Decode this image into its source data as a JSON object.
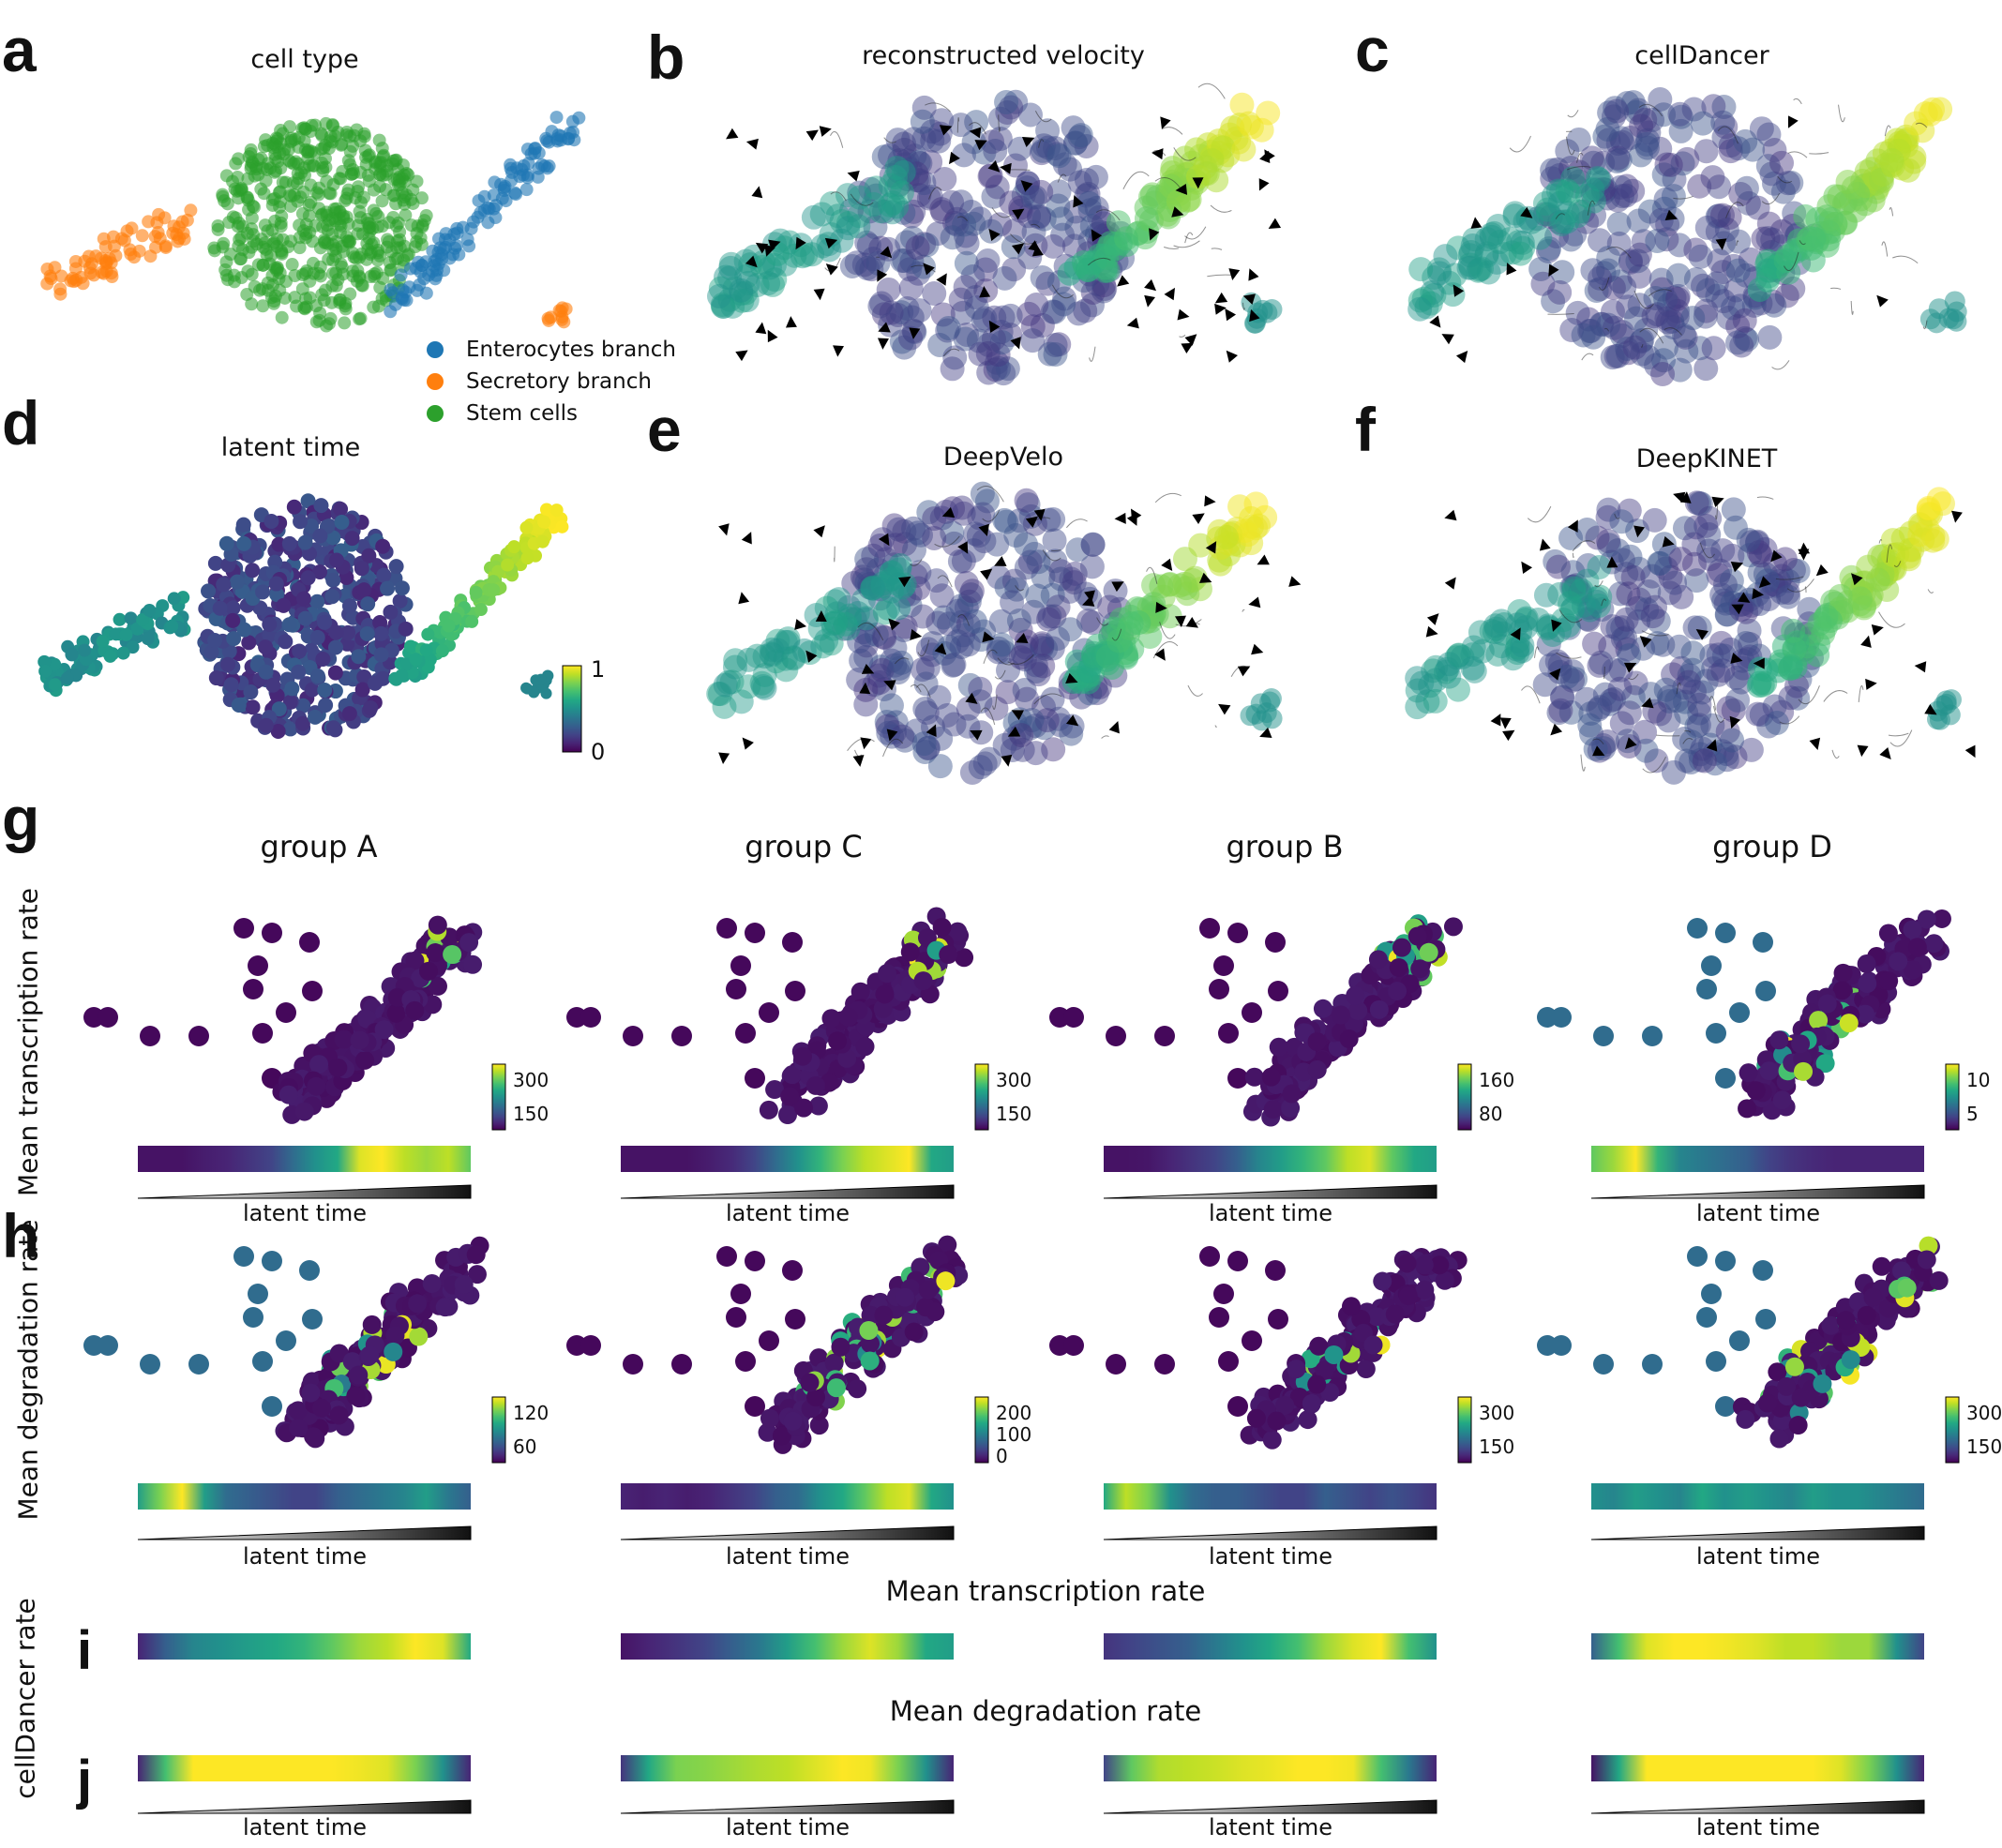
{
  "panels": {
    "a": {
      "letter": "a",
      "title": "cell type"
    },
    "b": {
      "letter": "b",
      "title": "reconstructed velocity"
    },
    "c": {
      "letter": "c",
      "title": "cellDancer"
    },
    "d": {
      "letter": "d",
      "title": "latent time"
    },
    "e": {
      "letter": "e",
      "title": "DeepVelo"
    },
    "f": {
      "letter": "f",
      "title": "DeepKINET"
    },
    "g": {
      "letter": "g"
    },
    "h": {
      "letter": "h"
    },
    "i": {
      "letter": "i"
    },
    "j": {
      "letter": "j"
    }
  },
  "legend": [
    {
      "label": "Enterocytes branch",
      "color": "#1f77b4"
    },
    {
      "label": "Secretory branch",
      "color": "#ff7f0e"
    },
    {
      "label": "Stem cells",
      "color": "#2ca02c"
    }
  ],
  "latent_colorbar": {
    "max_label": "1",
    "min_label": "0"
  },
  "groups": [
    "group A",
    "group C",
    "group B",
    "group D"
  ],
  "row_labels": {
    "g": "Mean transcription rate",
    "h": "Mean degradation rate",
    "ij": "cellDancer rate"
  },
  "section_titles": {
    "i": "Mean transcription rate",
    "j": "Mean degradation rate"
  },
  "latent_time_label": "latent time",
  "chart_data": [
    {
      "type": "scatter",
      "panel": "a",
      "title": "cell type",
      "series": [
        {
          "name": "Enterocytes branch"
        },
        {
          "name": "Secretory branch"
        },
        {
          "name": "Stem cells"
        }
      ]
    },
    {
      "type": "scatter",
      "panel": "d",
      "title": "latent time",
      "colorbar": {
        "ticks": [
          "0",
          "1"
        ],
        "range": [
          0,
          1
        ]
      }
    },
    {
      "type": "scatter",
      "panel": "g",
      "row": "Mean transcription rate",
      "colorbars": [
        {
          "group": "group A",
          "ticks": [
            "300",
            "150"
          ]
        },
        {
          "group": "group C",
          "ticks": [
            "300",
            "150"
          ]
        },
        {
          "group": "group B",
          "ticks": [
            "160",
            "80"
          ]
        },
        {
          "group": "group D",
          "ticks": [
            "10",
            "5"
          ]
        }
      ]
    },
    {
      "type": "scatter",
      "panel": "h",
      "row": "Mean degradation rate",
      "colorbars": [
        {
          "group": "group A",
          "ticks": [
            "120",
            "60"
          ]
        },
        {
          "group": "group C",
          "ticks": [
            "200",
            "100",
            "0"
          ]
        },
        {
          "group": "group B",
          "ticks": [
            "300",
            "150"
          ]
        },
        {
          "group": "group D",
          "ticks": [
            "300",
            "150"
          ]
        }
      ]
    },
    {
      "type": "heatmap",
      "panel": "g-bars",
      "x_label": "latent time",
      "rows": [
        {
          "group": "group A",
          "values": [
            0.05,
            0.05,
            0.05,
            0.08,
            0.1,
            0.15,
            0.2,
            0.35,
            0.5,
            0.6,
            0.95,
            1.0,
            0.9,
            0.85,
            0.9,
            0.75
          ]
        },
        {
          "group": "group C",
          "values": [
            0.05,
            0.05,
            0.05,
            0.05,
            0.08,
            0.12,
            0.2,
            0.35,
            0.5,
            0.65,
            0.8,
            0.9,
            0.95,
            1.0,
            0.6,
            0.55
          ]
        },
        {
          "group": "group B",
          "values": [
            0.05,
            0.05,
            0.06,
            0.1,
            0.15,
            0.2,
            0.3,
            0.45,
            0.55,
            0.65,
            0.75,
            0.9,
            0.95,
            0.75,
            0.6,
            0.55
          ]
        },
        {
          "group": "group D",
          "values": [
            0.75,
            0.85,
            1.0,
            0.65,
            0.45,
            0.4,
            0.35,
            0.3,
            0.2,
            0.15,
            0.12,
            0.1,
            0.1,
            0.1,
            0.1,
            0.1
          ]
        }
      ]
    },
    {
      "type": "heatmap",
      "panel": "h-bars",
      "x_label": "latent time",
      "rows": [
        {
          "group": "group A",
          "values": [
            0.55,
            0.8,
            1.0,
            0.55,
            0.35,
            0.3,
            0.25,
            0.2,
            0.2,
            0.3,
            0.35,
            0.4,
            0.45,
            0.55,
            0.4,
            0.3
          ]
        },
        {
          "group": "group C",
          "values": [
            0.1,
            0.08,
            0.1,
            0.08,
            0.1,
            0.15,
            0.2,
            0.3,
            0.35,
            0.5,
            0.6,
            0.75,
            0.9,
            0.95,
            0.6,
            0.5
          ]
        },
        {
          "group": "group B",
          "values": [
            0.6,
            0.9,
            0.8,
            0.5,
            0.35,
            0.3,
            0.3,
            0.25,
            0.2,
            0.2,
            0.3,
            0.25,
            0.2,
            0.25,
            0.2,
            0.15
          ]
        },
        {
          "group": "group D",
          "values": [
            0.5,
            0.45,
            0.55,
            0.5,
            0.45,
            0.6,
            0.5,
            0.55,
            0.5,
            0.45,
            0.55,
            0.5,
            0.5,
            0.45,
            0.4,
            0.35
          ]
        }
      ]
    },
    {
      "type": "heatmap",
      "panel": "i",
      "title": "Mean transcription rate",
      "x_label": "latent time",
      "rows": [
        {
          "group": "group A",
          "values": [
            0.1,
            0.3,
            0.45,
            0.5,
            0.55,
            0.6,
            0.65,
            0.75,
            0.85,
            0.9,
            1.0,
            0.95,
            0.6
          ]
        },
        {
          "group": "group C",
          "values": [
            0.05,
            0.1,
            0.15,
            0.2,
            0.3,
            0.4,
            0.55,
            0.7,
            0.85,
            0.95,
            0.85,
            0.6,
            0.55
          ]
        },
        {
          "group": "group B",
          "values": [
            0.15,
            0.2,
            0.25,
            0.3,
            0.4,
            0.5,
            0.6,
            0.7,
            0.85,
            0.95,
            1.0,
            0.7,
            0.5
          ]
        },
        {
          "group": "group D",
          "values": [
            0.3,
            0.7,
            0.95,
            1.0,
            1.0,
            0.98,
            0.95,
            0.9,
            0.9,
            0.85,
            0.85,
            0.5,
            0.2
          ]
        }
      ]
    },
    {
      "type": "heatmap",
      "panel": "j",
      "title": "Mean degradation rate",
      "x_label": "latent time",
      "rows": [
        {
          "group": "group A",
          "values": [
            0.1,
            0.7,
            1.0,
            1.0,
            1.0,
            1.0,
            1.0,
            1.0,
            0.98,
            0.95,
            0.8,
            0.5,
            0.1
          ]
        },
        {
          "group": "group C",
          "values": [
            0.15,
            0.6,
            0.8,
            0.82,
            0.85,
            0.88,
            0.9,
            0.95,
            1.0,
            0.98,
            0.8,
            0.5,
            0.1
          ]
        },
        {
          "group": "group B",
          "values": [
            0.2,
            0.75,
            0.88,
            0.9,
            0.92,
            0.95,
            0.97,
            1.0,
            1.0,
            0.98,
            0.7,
            0.4,
            0.1
          ]
        },
        {
          "group": "group D",
          "values": [
            0.05,
            0.6,
            1.0,
            1.0,
            1.0,
            1.0,
            1.0,
            1.0,
            1.0,
            0.95,
            0.8,
            0.5,
            0.1
          ]
        }
      ]
    }
  ]
}
